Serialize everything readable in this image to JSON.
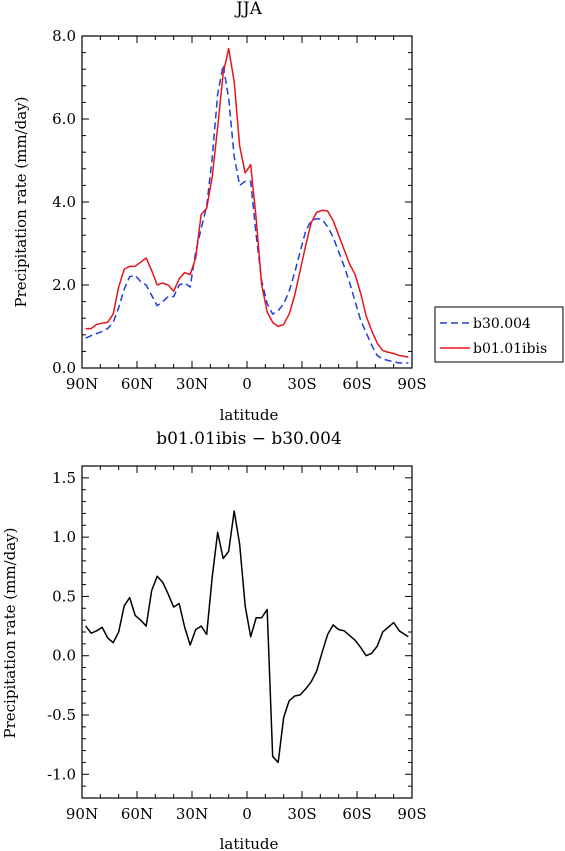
{
  "chart_data": [
    {
      "type": "line",
      "title": "JJA",
      "xlabel": "latitude",
      "ylabel": "Precipitation rate (mm/day)",
      "xlim": [
        90,
        -90
      ],
      "ylim": [
        0,
        8
      ],
      "x_ticks": [
        90,
        60,
        30,
        0,
        -30,
        -60,
        -90
      ],
      "x_tick_labels": [
        "90N",
        "60N",
        "30N",
        "0",
        "30S",
        "60S",
        "90S"
      ],
      "y_ticks": [
        0,
        2,
        4,
        6,
        8
      ],
      "y_tick_labels": [
        "0.0",
        "2.0",
        "4.0",
        "6.0",
        "8.0"
      ],
      "legend_position": "right, outside",
      "series": [
        {
          "name": "b30.004",
          "color": "#1f3fd6",
          "dash": "dashed",
          "x": [
            88,
            85,
            82,
            79,
            76,
            73,
            70,
            67,
            64,
            61,
            58,
            55,
            52,
            49,
            46,
            43,
            40,
            37,
            34,
            31,
            28,
            25,
            22,
            19,
            16,
            13,
            10,
            7,
            4,
            1,
            -2,
            -5,
            -8,
            -11,
            -14,
            -17,
            -20,
            -23,
            -26,
            -29,
            -32,
            -35,
            -38,
            -41,
            -44,
            -47,
            -50,
            -53,
            -56,
            -59,
            -62,
            -65,
            -68,
            -71,
            -74,
            -77,
            -80,
            -83,
            -86,
            -88
          ],
          "y": [
            0.72,
            0.78,
            0.83,
            0.88,
            0.95,
            1.1,
            1.45,
            1.9,
            2.2,
            2.23,
            2.08,
            2.0,
            1.75,
            1.5,
            1.6,
            1.72,
            1.72,
            2.0,
            2.05,
            1.95,
            2.8,
            3.35,
            3.9,
            5.05,
            6.6,
            7.3,
            6.5,
            5.1,
            4.4,
            4.5,
            4.5,
            3.2,
            2.1,
            1.55,
            1.3,
            1.38,
            1.55,
            1.85,
            2.3,
            2.8,
            3.3,
            3.55,
            3.6,
            3.58,
            3.4,
            3.15,
            2.8,
            2.45,
            2.05,
            1.6,
            1.15,
            0.85,
            0.55,
            0.3,
            0.22,
            0.18,
            0.15,
            0.12,
            0.12,
            0.12
          ]
        },
        {
          "name": "b01.01ibis",
          "color": "#e8141c",
          "dash": "solid",
          "x": [
            88,
            85,
            82,
            79,
            76,
            73,
            70,
            67,
            64,
            61,
            58,
            55,
            52,
            49,
            46,
            43,
            40,
            37,
            34,
            31,
            28,
            25,
            22,
            19,
            16,
            13,
            10,
            7,
            4,
            1,
            -2,
            -5,
            -8,
            -11,
            -14,
            -17,
            -20,
            -23,
            -26,
            -29,
            -32,
            -35,
            -38,
            -41,
            -44,
            -47,
            -50,
            -53,
            -56,
            -59,
            -62,
            -65,
            -68,
            -71,
            -74,
            -77,
            -80,
            -83,
            -86,
            -88
          ],
          "y": [
            0.95,
            0.95,
            1.05,
            1.08,
            1.1,
            1.3,
            1.95,
            2.38,
            2.45,
            2.45,
            2.55,
            2.65,
            2.35,
            2.0,
            2.05,
            2.0,
            1.85,
            2.15,
            2.3,
            2.25,
            2.65,
            3.7,
            3.85,
            4.6,
            5.8,
            7.1,
            7.7,
            6.9,
            5.35,
            4.7,
            4.9,
            3.6,
            2.0,
            1.35,
            1.1,
            1.0,
            1.05,
            1.3,
            1.75,
            2.35,
            2.95,
            3.5,
            3.75,
            3.8,
            3.78,
            3.55,
            3.2,
            2.85,
            2.5,
            2.25,
            1.8,
            1.25,
            0.9,
            0.6,
            0.42,
            0.38,
            0.35,
            0.3,
            0.28,
            0.26
          ]
        }
      ]
    },
    {
      "type": "line",
      "title": "b01.01ibis − b30.004",
      "xlabel": "latitude",
      "ylabel": "Precipitation rate (mm/day)",
      "xlim": [
        90,
        -90
      ],
      "ylim": [
        -1.2,
        1.6
      ],
      "x_ticks": [
        90,
        60,
        30,
        0,
        -30,
        -60,
        -90
      ],
      "x_tick_labels": [
        "90N",
        "60N",
        "30N",
        "0",
        "30S",
        "60S",
        "90S"
      ],
      "y_ticks": [
        -1.0,
        -0.5,
        0.0,
        0.5,
        1.0,
        1.5
      ],
      "y_tick_labels": [
        "-1.0",
        "-0.5",
        "0.0",
        "0.5",
        "1.0",
        "1.5"
      ],
      "series": [
        {
          "color": "#000000",
          "x": [
            88,
            85,
            82,
            79,
            76,
            73,
            70,
            67,
            64,
            61,
            58,
            55,
            52,
            49,
            46,
            43,
            40,
            37,
            34,
            31,
            28,
            25,
            22,
            19,
            16,
            13,
            10,
            7,
            4,
            1,
            -2,
            -5,
            -8,
            -11,
            -14,
            -17,
            -20,
            -23,
            -26,
            -29,
            -32,
            -35,
            -38,
            -41,
            -44,
            -47,
            -50,
            -53,
            -56,
            -59,
            -62,
            -65,
            -68,
            -71,
            -74,
            -77,
            -80,
            -83,
            -86,
            -88
          ],
          "y": [
            0.25,
            0.19,
            0.21,
            0.24,
            0.15,
            0.11,
            0.2,
            0.42,
            0.49,
            0.34,
            0.3,
            0.25,
            0.55,
            0.67,
            0.62,
            0.52,
            0.41,
            0.44,
            0.24,
            0.09,
            0.22,
            0.25,
            0.18,
            0.66,
            1.04,
            0.82,
            0.88,
            1.22,
            0.94,
            0.42,
            0.16,
            0.32,
            0.32,
            0.39,
            -0.85,
            -0.9,
            -0.52,
            -0.38,
            -0.34,
            -0.33,
            -0.28,
            -0.22,
            -0.13,
            0.03,
            0.18,
            0.26,
            0.22,
            0.21,
            0.17,
            0.13,
            0.07,
            0.0,
            0.02,
            0.08,
            0.2,
            0.24,
            0.28,
            0.21,
            0.18,
            0.16
          ]
        }
      ]
    }
  ]
}
